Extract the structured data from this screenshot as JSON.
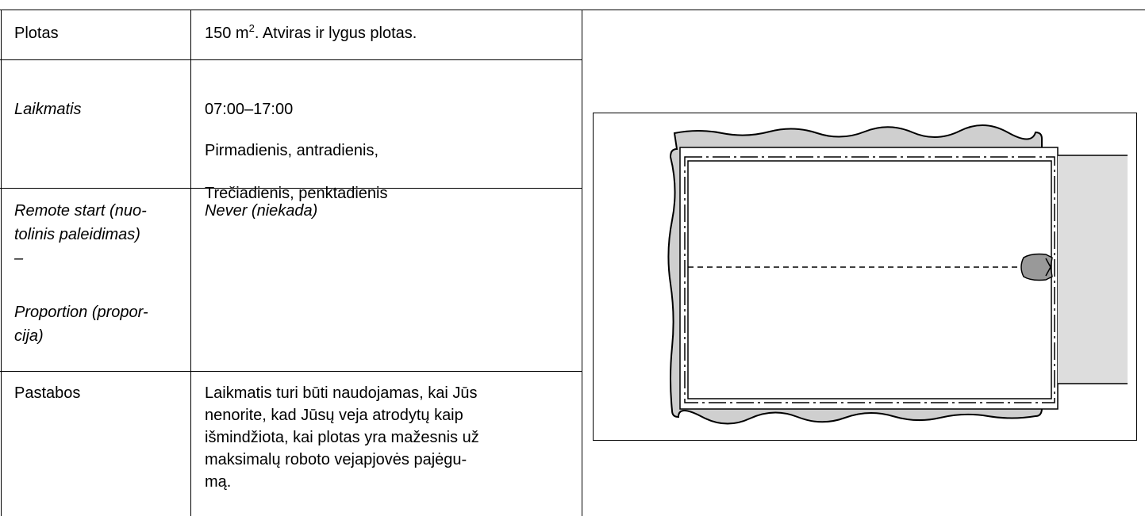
{
  "table": {
    "rows": [
      {
        "label": [
          "Plotas"
        ],
        "value": {
          "lines": [
            [
              "150 m",
              "2",
              ". Atviras ir lygus plotas."
            ]
          ]
        }
      },
      {
        "label": [
          "Laikmatis"
        ],
        "value": {
          "lines": [
            [
              "07:00–17:00"
            ],
            [
              "Pirmadienis, antradienis,"
            ],
            [
              "Trečiadienis, penktadienis"
            ]
          ]
        }
      },
      {
        "label": [
          "Remote start (nuo-",
          "tolinis paleidimas)",
          "–",
          "Proportion (propor-",
          "cija)"
        ],
        "value": {
          "lines": [
            [
              "Never (niekada)"
            ]
          ]
        }
      },
      {
        "label": [
          "Pastabos"
        ],
        "value": {
          "lines": [
            [
              "Laikmatis turi būti naudojamas, kai Jūs"
            ],
            [
              "nenorite, kad Jūsų veja atrodytų kaip"
            ],
            [
              "išmindžiota, kai plotas yra mažesnis už"
            ],
            [
              "maksimalų roboto vejapjovės pajėgu-"
            ],
            [
              "mą."
            ]
          ]
        }
      }
    ]
  }
}
